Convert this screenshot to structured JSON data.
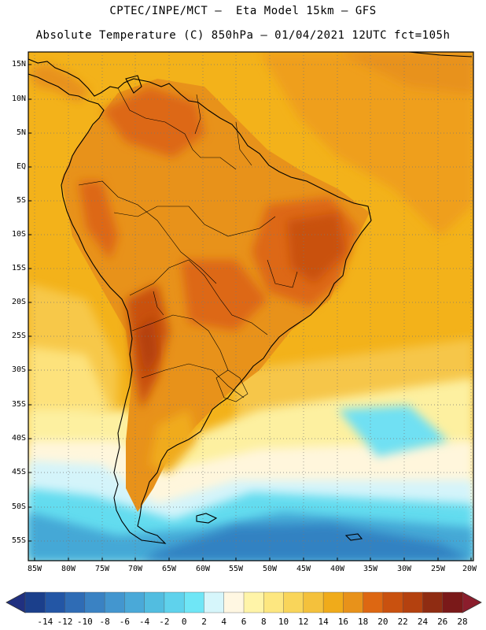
{
  "header": {
    "line1": "CPTEC/INPE/MCT –  Eta Model 15km – GFS",
    "line2": "Absolute Temperature (C) 850hPa – 01/04/2021 12UTC fct=105h"
  },
  "map": {
    "lat_labels": [
      "15N",
      "10N",
      "5N",
      "EQ",
      "5S",
      "10S",
      "15S",
      "20S",
      "25S",
      "30S",
      "35S",
      "40S",
      "45S",
      "50S",
      "55S"
    ],
    "lon_labels": [
      "85W",
      "80W",
      "75W",
      "70W",
      "65W",
      "60W",
      "55W",
      "50W",
      "45W",
      "40W",
      "35W",
      "30W",
      "25W",
      "20W"
    ]
  },
  "colorbar": {
    "labels": [
      "-14",
      "-12",
      "-10",
      "-8",
      "-6",
      "-4",
      "-2",
      "0",
      "2",
      "4",
      "6",
      "8",
      "10",
      "12",
      "14",
      "16",
      "18",
      "20",
      "22",
      "24",
      "26",
      "28"
    ],
    "colors": [
      "#1b3f8b",
      "#2356a5",
      "#2f6cb5",
      "#3a82c3",
      "#4396cf",
      "#4aa9d8",
      "#52bde0",
      "#5fd2ec",
      "#6fe6f6",
      "#d6f6fb",
      "#fff7e2",
      "#fff4a8",
      "#fde780",
      "#f9d55a",
      "#f4c13c",
      "#f0ab1a",
      "#e8921a",
      "#dd6712",
      "#c9510f",
      "#b4410f",
      "#8f2c12",
      "#7a1919"
    ],
    "low_color": "#203080",
    "high_color": "#8b1d2c"
  }
}
